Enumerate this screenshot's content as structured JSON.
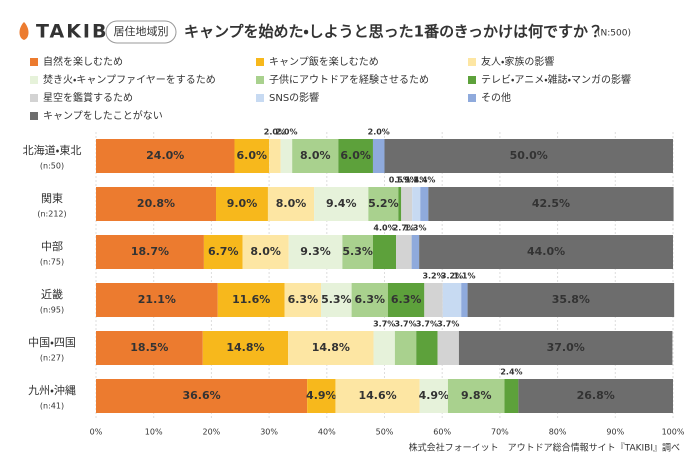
{
  "header": {
    "logo": "TAKIBI",
    "badge": "居住地域別",
    "note": "株式会社フォーイット　アウトドア総合情報サイト『TAKIBI』調べ"
  },
  "chart_data": {
    "type": "stacked-barh",
    "title": "キャンプを始めた・しようと思った1番のきっかけは何ですか？",
    "subtitle": "(N:500)",
    "categories": [
      "北海道・東北",
      "関東",
      "中部",
      "近畿",
      "中国・四国",
      "九州・沖縄"
    ],
    "category_notes": [
      "(n:50)",
      "(n:212)",
      "(n:75)",
      "(n:95)",
      "(n:27)",
      "(n:41)"
    ],
    "xlim": [
      0,
      100
    ],
    "xticks": [
      {
        "value": 0,
        "label": "0%"
      },
      {
        "value": 10,
        "label": "10%"
      },
      {
        "value": 20,
        "label": "20%"
      },
      {
        "value": 30,
        "label": "30%"
      },
      {
        "value": 40,
        "label": "40%"
      },
      {
        "value": 50,
        "label": "50%"
      },
      {
        "value": 60,
        "label": "60%"
      },
      {
        "value": 70,
        "label": "70%"
      },
      {
        "value": 80,
        "label": "80%"
      },
      {
        "value": 90,
        "label": "90%"
      },
      {
        "value": 100,
        "label": "100%"
      }
    ],
    "grid": true,
    "series": [
      {
        "name": "自然を楽しむため",
        "color": "#ec7b2f",
        "values": [
          24.0,
          20.8,
          18.7,
          21.1,
          18.5,
          36.6
        ],
        "value_labels": [
          "24.0%",
          "20.8%",
          "18.7%",
          "21.1%",
          "18.5%",
          "36.6%"
        ]
      },
      {
        "name": "キャンプ飯を楽しむため",
        "color": "#f7b81c",
        "values": [
          6.0,
          9.0,
          6.7,
          11.6,
          14.8,
          4.9
        ],
        "value_labels": [
          "6.0%",
          "9.0%",
          "6.7%",
          "11.6%",
          "14.8%",
          "4.9%"
        ]
      },
      {
        "name": "友人・家族の影響",
        "color": "#fde6a3",
        "values": [
          2.0,
          8.0,
          8.0,
          6.3,
          14.8,
          14.6
        ],
        "value_labels": [
          "2.0%",
          "8.0%",
          "8.0%",
          "6.3%",
          "14.8%",
          "14.6%"
        ]
      },
      {
        "name": "焚き火・キャンプファイヤーをするため",
        "color": "#e6f2da",
        "values": [
          2.0,
          9.4,
          9.3,
          5.3,
          3.7,
          4.9
        ],
        "value_labels": [
          "2.0%",
          "9.4%",
          "9.3%",
          "5.3%",
          "3.7%",
          "4.9%"
        ]
      },
      {
        "name": "子供にアウトドアを経験させるため",
        "color": "#a9d18e",
        "values": [
          8.0,
          5.2,
          5.3,
          6.3,
          3.7,
          9.8
        ],
        "value_labels": [
          "8.0%",
          "5.2%",
          "5.3%",
          "6.3%",
          "3.7%",
          "9.8%"
        ]
      },
      {
        "name": "テレビ・アニメ・雑誌・マンガの影響",
        "color": "#5da13b",
        "values": [
          6.0,
          0.5,
          4.0,
          6.3,
          3.7,
          2.4
        ],
        "value_labels": [
          "6.0%",
          "0.5%",
          "4.0%",
          "6.3%",
          "3.7%",
          "2.4%"
        ]
      },
      {
        "name": "星空を鑑賞するため",
        "color": "#d3d3d3",
        "values": [
          null,
          1.9,
          2.7,
          3.2,
          3.7,
          null
        ],
        "value_labels": [
          null,
          "1.9%",
          "2.7%",
          "3.2%",
          "3.7%",
          null
        ]
      },
      {
        "name": "SNSの影響",
        "color": "#c7daf2",
        "values": [
          null,
          1.4,
          null,
          3.2,
          null,
          null
        ],
        "value_labels": [
          null,
          "1.4%",
          null,
          "3.2%",
          null,
          null
        ]
      },
      {
        "name": "その他",
        "color": "#8faadc",
        "values": [
          2.0,
          1.4,
          1.3,
          1.1,
          null,
          null
        ],
        "value_labels": [
          "2.0%",
          "1.4%",
          "1.3%",
          "1.1%",
          null,
          null
        ]
      },
      {
        "name": "キャンプをしたことがない",
        "color": "#6d6d6d",
        "values": [
          50.0,
          42.5,
          44.0,
          35.8,
          37.0,
          26.8
        ],
        "value_labels": [
          "50.0%",
          "42.5%",
          "44.0%",
          "35.8%",
          "37.0%",
          "26.8%"
        ]
      }
    ]
  }
}
